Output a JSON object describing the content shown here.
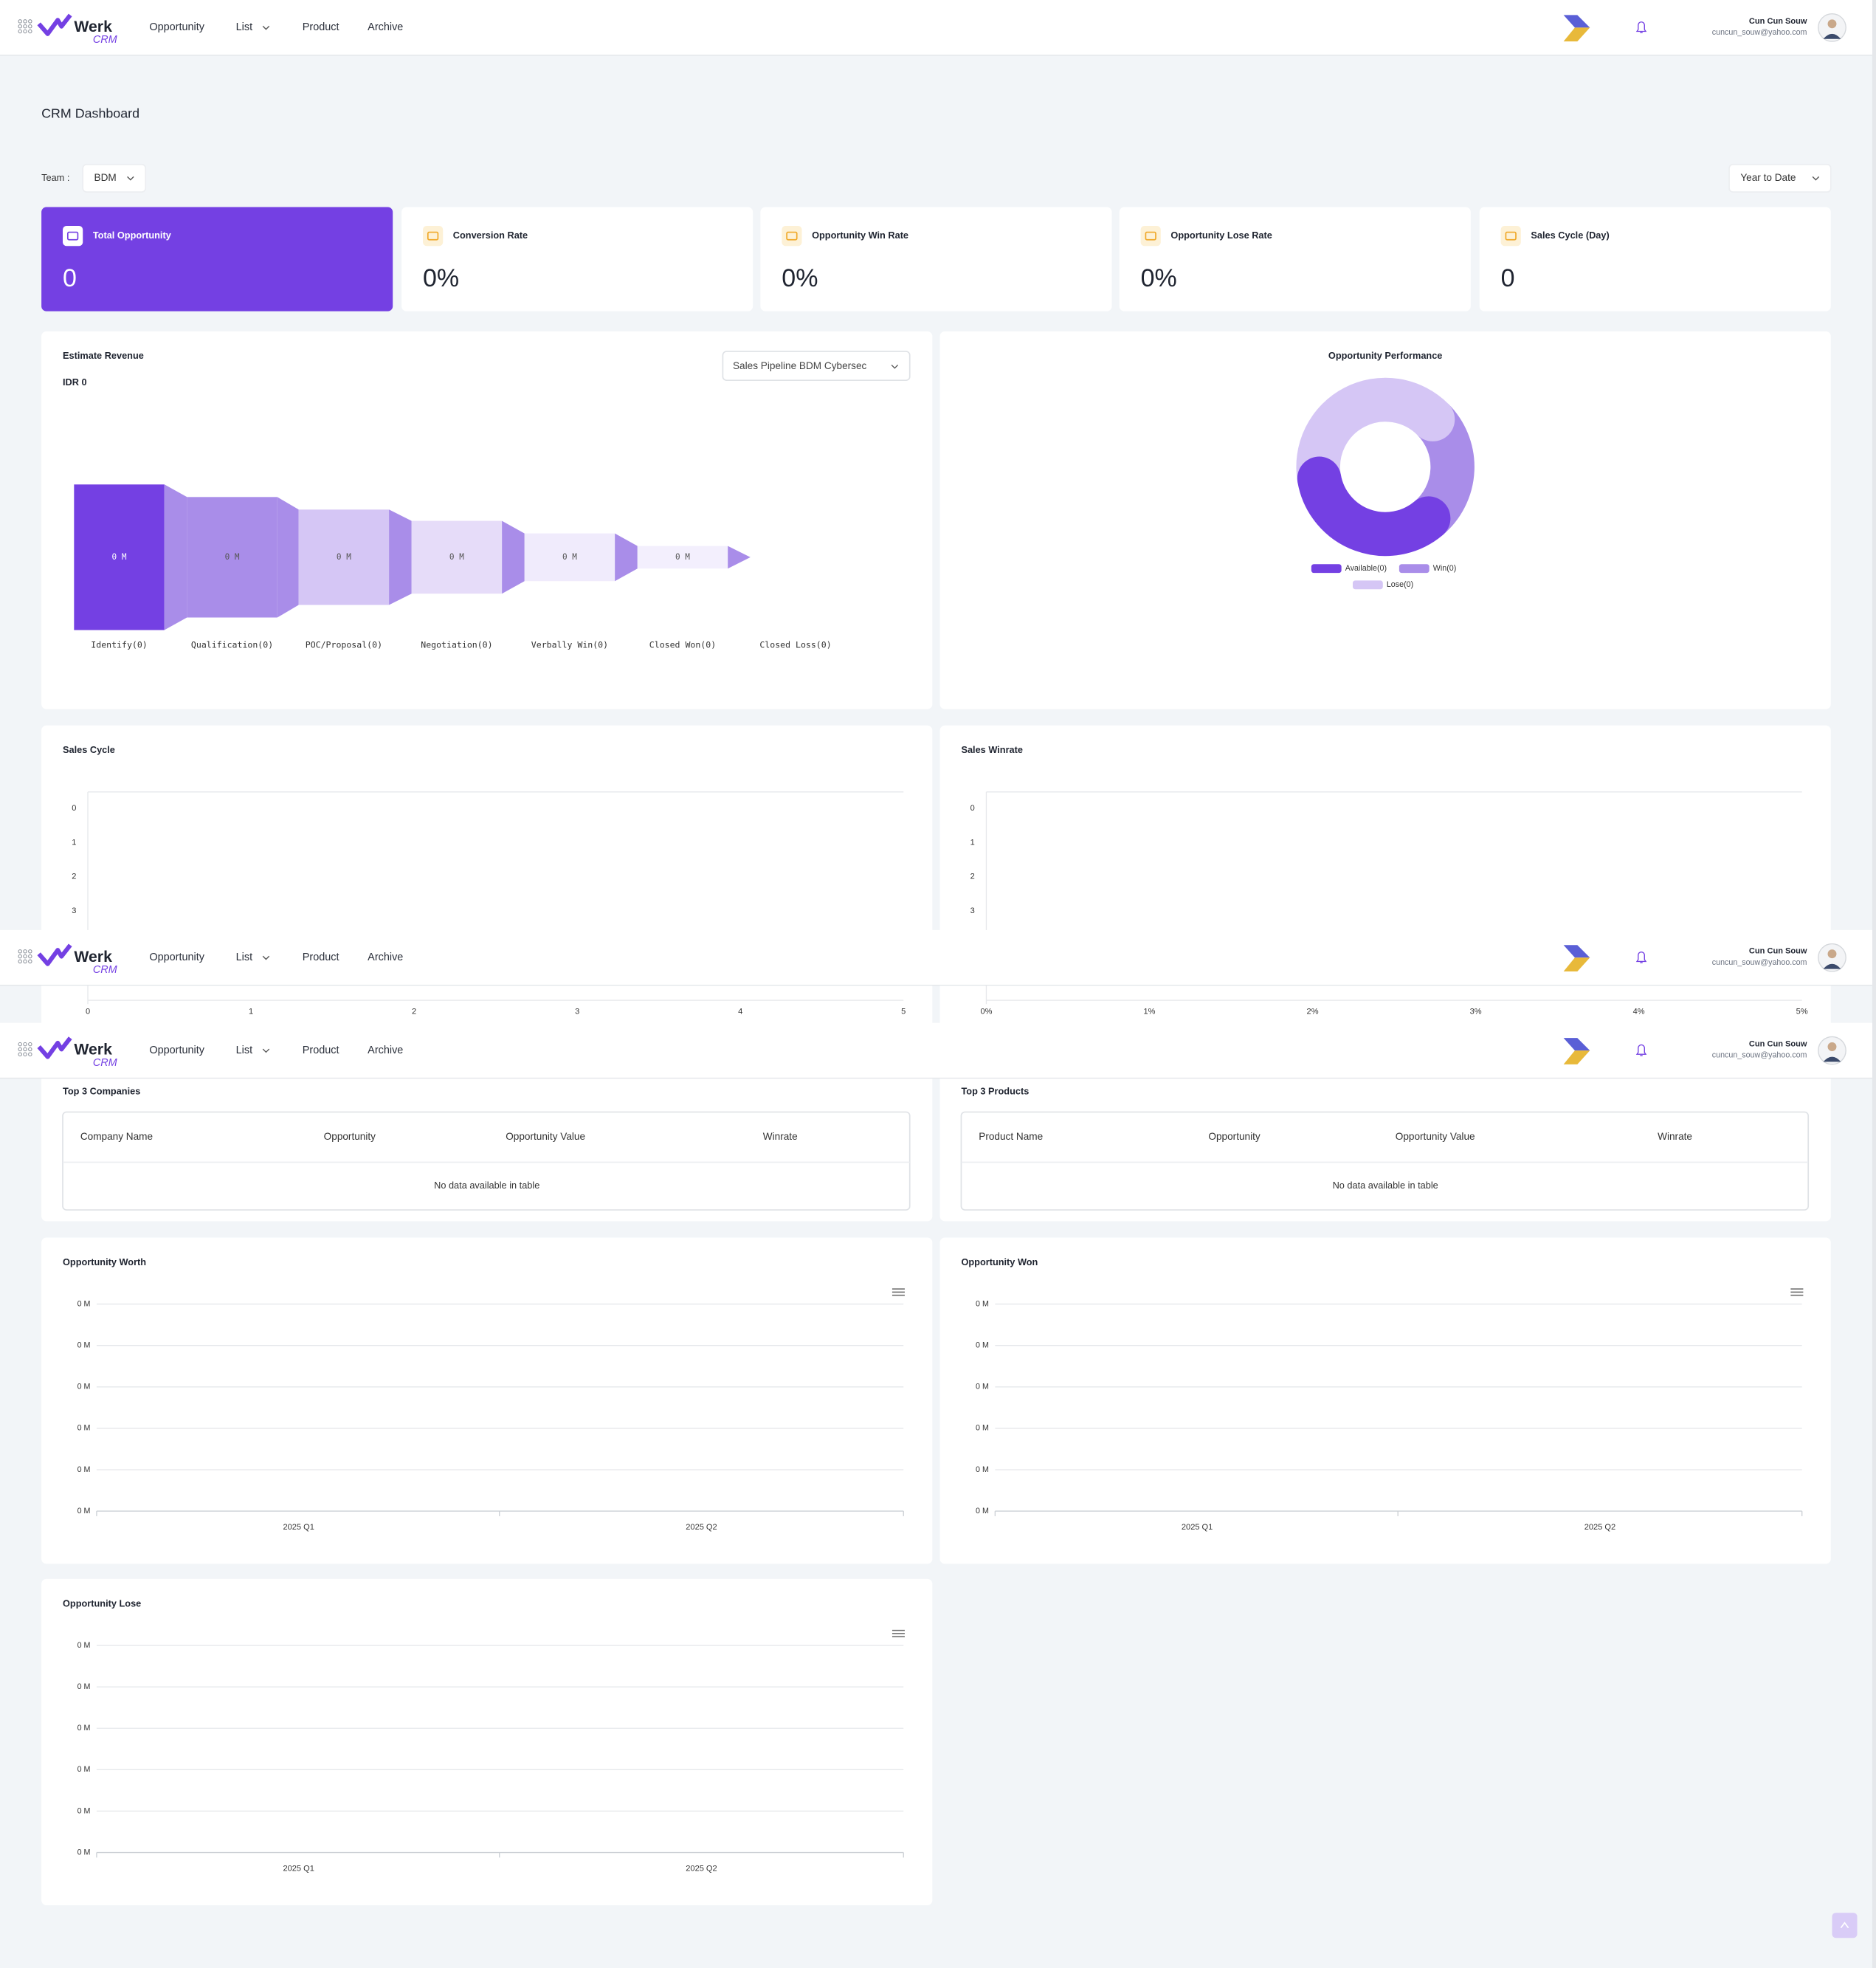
{
  "navbar": {
    "brand": "Werk",
    "brand_sub": "CRM",
    "menu": [
      "Opportunity",
      "List",
      "Product",
      "Archive"
    ],
    "user": {
      "name": "Cun Cun Souw",
      "email": "cuncun_souw@yahoo.com"
    }
  },
  "header": {
    "title": "CRM Dashboard",
    "team_label": "Team :",
    "team": "BDM",
    "period": "Year to Date"
  },
  "kpis": [
    {
      "label": "Total Opportunity",
      "value": "0"
    },
    {
      "label": "Conversion Rate",
      "value": "0%"
    },
    {
      "label": "Opportunity Win Rate",
      "value": "0%"
    },
    {
      "label": "Opportunity Lose Rate",
      "value": "0%"
    },
    {
      "label": "Sales Cycle (Day)",
      "value": "0"
    }
  ],
  "estimate_revenue": {
    "title": "Estimate Revenue",
    "total": "IDR 0",
    "pipeline": "Sales Pipeline BDM Cybersec",
    "stages": [
      {
        "label": "Identify(0)",
        "value": "0 M"
      },
      {
        "label": "Qualification(0)",
        "value": "0 M"
      },
      {
        "label": "POC/Proposal(0)",
        "value": "0 M"
      },
      {
        "label": "Negotiation(0)",
        "value": "0 M"
      },
      {
        "label": "Verbally Win(0)",
        "value": "0 M"
      },
      {
        "label": "Closed Won(0)",
        "value": "0 M"
      },
      {
        "label": "Closed Loss(0)"
      }
    ]
  },
  "opportunity_performance": {
    "title": "Opportunity Performance",
    "legend": [
      "Available(0)",
      "Win(0)",
      "Lose(0)"
    ]
  },
  "sales_cycle": {
    "title": "Sales Cycle",
    "yticks": [
      "0",
      "1",
      "2",
      "3"
    ],
    "xticks": [
      "0",
      "1",
      "2",
      "3",
      "4",
      "5"
    ]
  },
  "sales_winrate": {
    "title": "Sales Winrate",
    "yticks": [
      "0",
      "1",
      "2",
      "3"
    ],
    "xticks": [
      "0%",
      "1%",
      "2%",
      "3%",
      "4%",
      "5%"
    ]
  },
  "top_companies": {
    "title": "Top 3 Companies",
    "columns": [
      "Company Name",
      "Opportunity",
      "Opportunity Value",
      "Winrate"
    ],
    "empty": "No data available in table"
  },
  "top_products": {
    "title": "Top 3 Products",
    "columns": [
      "Product Name",
      "Opportunity",
      "Opportunity Value",
      "Winrate"
    ],
    "empty": "No data available in table"
  },
  "opportunity_worth": {
    "title": "Opportunity Worth",
    "yticks": [
      "0 M",
      "0 M",
      "0 M",
      "0 M",
      "0 M",
      "0 M"
    ],
    "xticks": [
      "2025 Q1",
      "2025 Q2"
    ]
  },
  "opportunity_won": {
    "title": "Opportunity Won",
    "yticks": [
      "0 M",
      "0 M",
      "0 M",
      "0 M",
      "0 M",
      "0 M"
    ],
    "xticks": [
      "2025 Q1",
      "2025 Q2"
    ]
  },
  "opportunity_lose": {
    "title": "Opportunity Lose",
    "yticks": [
      "0 M",
      "0 M",
      "0 M",
      "0 M",
      "0 M",
      "0 M"
    ],
    "xticks": [
      "2025 Q1",
      "2025 Q2"
    ]
  }
}
